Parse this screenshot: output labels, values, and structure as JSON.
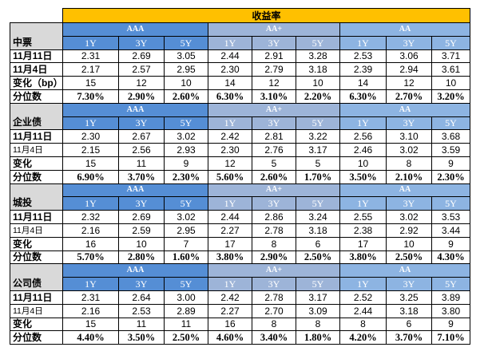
{
  "chart_data": {
    "type": "table",
    "title": "收益率",
    "rating_groups": [
      {
        "name": "AAA",
        "color": "#558ED5"
      },
      {
        "name": "AA+",
        "color": "#9DB4D8"
      },
      {
        "name": "AA",
        "color": "#8DB4E2"
      }
    ],
    "tenors": [
      "1Y",
      "3Y",
      "5Y"
    ],
    "sections": [
      {
        "name": "中票",
        "rows": [
          {
            "label": "11月11日",
            "values": [
              "2.31",
              "2.69",
              "3.05",
              "2.44",
              "2.91",
              "3.28",
              "2.53",
              "3.06",
              "3.71"
            ]
          },
          {
            "label": "11月4日",
            "values": [
              "2.17",
              "2.57",
              "2.95",
              "2.30",
              "2.79",
              "3.18",
              "2.39",
              "2.94",
              "3.61"
            ]
          },
          {
            "label": "变化（bp）",
            "values": [
              "15",
              "12",
              "10",
              "14",
              "12",
              "10",
              "14",
              "12",
              "10"
            ]
          },
          {
            "label": "分位数",
            "values": [
              "7.30%",
              "2.90%",
              "2.60%",
              "6.30%",
              "3.10%",
              "2.20%",
              "6.30%",
              "2.70%",
              "3.20%"
            ]
          }
        ]
      },
      {
        "name": "企业债",
        "rows": [
          {
            "label": "11月11日",
            "values": [
              "2.30",
              "2.67",
              "3.02",
              "2.42",
              "2.81",
              "3.22",
              "2.56",
              "3.10",
              "3.68"
            ]
          },
          {
            "label": "11月4日",
            "values": [
              "2.15",
              "2.56",
              "2.93",
              "2.30",
              "2.76",
              "3.17",
              "2.46",
              "3.02",
              "3.59"
            ]
          },
          {
            "label": "变化",
            "values": [
              "15",
              "11",
              "9",
              "12",
              "5",
              "5",
              "10",
              "8",
              "9"
            ]
          },
          {
            "label": "分位数",
            "values": [
              "6.90%",
              "3.70%",
              "2.30%",
              "5.60%",
              "2.60%",
              "1.70%",
              "3.50%",
              "2.10%",
              "2.30%"
            ]
          }
        ]
      },
      {
        "name": "城投",
        "rows": [
          {
            "label": "11月11日",
            "values": [
              "2.32",
              "2.69",
              "3.02",
              "2.44",
              "2.86",
              "3.24",
              "2.55",
              "3.02",
              "3.53"
            ]
          },
          {
            "label": "11月4日",
            "values": [
              "2.16",
              "2.59",
              "2.95",
              "2.27",
              "2.78",
              "3.18",
              "2.38",
              "2.92",
              "3.44"
            ]
          },
          {
            "label": "变化",
            "values": [
              "16",
              "10",
              "7",
              "17",
              "8",
              "6",
              "17",
              "10",
              "9"
            ]
          },
          {
            "label": "分位数",
            "values": [
              "5.70%",
              "2.80%",
              "1.60%",
              "3.80%",
              "2.90%",
              "2.50%",
              "3.80%",
              "2.50%",
              "4.30%"
            ]
          }
        ]
      },
      {
        "name": "公司债",
        "rows": [
          {
            "label": "11月11日",
            "values": [
              "2.31",
              "2.64",
              "3.00",
              "2.42",
              "2.78",
              "3.17",
              "2.52",
              "3.25",
              "3.89"
            ]
          },
          {
            "label": "11月4日",
            "values": [
              "2.16",
              "2.53",
              "2.89",
              "2.27",
              "2.70",
              "3.09",
              "2.44",
              "3.18",
              "3.80"
            ]
          },
          {
            "label": "变化",
            "values": [
              "15",
              "11",
              "11",
              "16",
              "8",
              "8",
              "8",
              "6",
              "9"
            ]
          },
          {
            "label": "分位数",
            "values": [
              "4.40%",
              "3.50%",
              "2.50%",
              "4.60%",
              "3.40%",
              "1.80%",
              "4.20%",
              "3.70%",
              "7.10%"
            ]
          }
        ]
      }
    ]
  },
  "colors": {
    "title_bg": "#FFC000",
    "section_label_bg": "#D9D9D9",
    "header_text": "#FFFFFF",
    "grid_line": "#000000"
  }
}
